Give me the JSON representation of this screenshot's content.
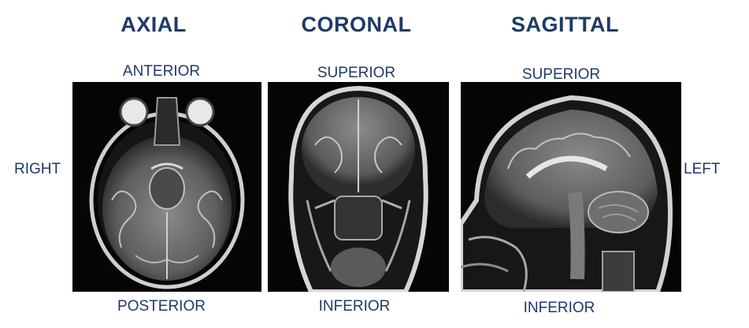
{
  "titles": {
    "axial": "AXIAL",
    "coronal": "CORONAL",
    "sagittal": "SAGITTAL"
  },
  "axial": {
    "top": "ANTERIOR",
    "bottom": "POSTERIOR"
  },
  "coronal": {
    "top": "SUPERIOR",
    "bottom": "INFERIOR"
  },
  "sagittal": {
    "top": "SUPERIOR",
    "bottom": "INFERIOR"
  },
  "sides": {
    "left": "RIGHT",
    "right": "LEFT"
  }
}
